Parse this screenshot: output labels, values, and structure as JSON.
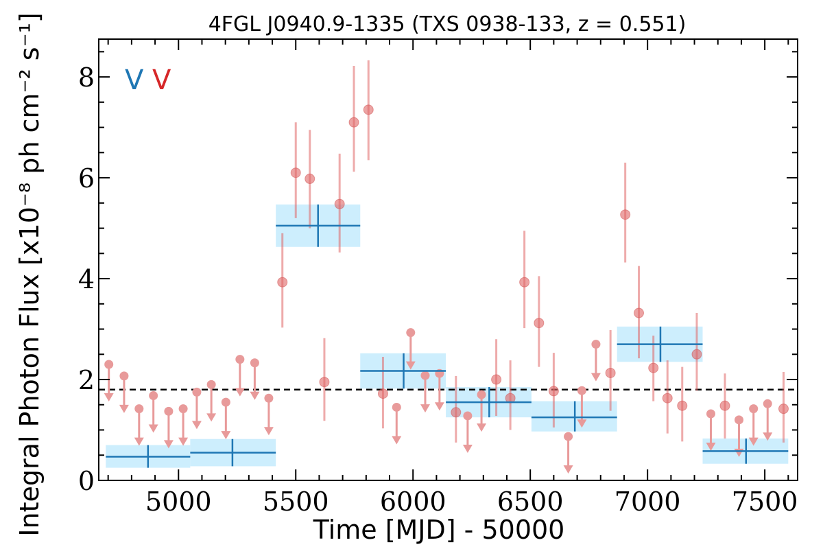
{
  "chart_data": {
    "type": "scatter",
    "title": "4FGL J0940.9-1335 (TXS 0938-133, z = 0.551)",
    "xlabel": "Time [MJD] - 50000",
    "ylabel": "Integral Photon Flux [x10⁻⁸ ph cm⁻² s⁻¹]",
    "xlim": [
      4660,
      7640
    ],
    "ylim": [
      0,
      8.75
    ],
    "x_ticks": [
      5000,
      5500,
      6000,
      6500,
      7000,
      7500
    ],
    "y_ticks": [
      0,
      2,
      4,
      6,
      8
    ],
    "grid": false,
    "markers": [
      {
        "text": "V",
        "color": "#1f77b4"
      },
      {
        "text": "V",
        "color": "#d62728"
      }
    ],
    "reference_line": {
      "y": 1.8,
      "style": "dashed",
      "color": "#000000"
    },
    "colors": {
      "binned": "#1f77b4",
      "binned_band": "#cdeefd",
      "points": "#e06666",
      "upper_limits": "#e89a9a"
    },
    "series": [
      {
        "kind": "binned",
        "points": [
          {
            "x0": 4690,
            "x1": 5050,
            "x": 4870,
            "y": 0.47,
            "y_lo": 0.25,
            "y_hi": 0.7
          },
          {
            "x0": 5050,
            "x1": 5415,
            "x": 5230,
            "y": 0.55,
            "y_lo": 0.28,
            "y_hi": 0.82
          },
          {
            "x0": 5415,
            "x1": 5775,
            "x": 5595,
            "y": 5.05,
            "y_lo": 4.63,
            "y_hi": 5.47
          },
          {
            "x0": 5775,
            "x1": 6140,
            "x": 5960,
            "y": 2.17,
            "y_lo": 1.82,
            "y_hi": 2.52
          },
          {
            "x0": 6140,
            "x1": 6505,
            "x": 6325,
            "y": 1.55,
            "y_lo": 1.25,
            "y_hi": 1.85
          },
          {
            "x0": 6505,
            "x1": 6870,
            "x": 6690,
            "y": 1.25,
            "y_lo": 0.97,
            "y_hi": 1.57
          },
          {
            "x0": 6870,
            "x1": 7235,
            "x": 7055,
            "y": 2.7,
            "y_lo": 2.35,
            "y_hi": 3.05
          },
          {
            "x0": 7235,
            "x1": 7600,
            "x": 7420,
            "y": 0.58,
            "y_lo": 0.33,
            "y_hi": 0.83
          }
        ]
      },
      {
        "kind": "detections",
        "points": [
          {
            "x": 5443,
            "y": 3.93,
            "y_lo": 3.03,
            "y_hi": 4.9
          },
          {
            "x": 5500,
            "y": 6.1,
            "y_lo": 5.2,
            "y_hi": 7.1
          },
          {
            "x": 5560,
            "y": 5.98,
            "y_lo": 5.0,
            "y_hi": 6.95
          },
          {
            "x": 5622,
            "y": 1.95,
            "y_lo": 1.18,
            "y_hi": 2.82
          },
          {
            "x": 5687,
            "y": 5.48,
            "y_lo": 4.52,
            "y_hi": 6.48
          },
          {
            "x": 5748,
            "y": 7.1,
            "y_lo": 6.12,
            "y_hi": 8.22
          },
          {
            "x": 5810,
            "y": 7.35,
            "y_lo": 6.35,
            "y_hi": 8.33
          },
          {
            "x": 5872,
            "y": 1.72,
            "y_lo": 1.03,
            "y_hi": 2.45
          },
          {
            "x": 6183,
            "y": 1.35,
            "y_lo": 0.75,
            "y_hi": 2.07
          },
          {
            "x": 6355,
            "y": 2.0,
            "y_lo": 1.28,
            "y_hi": 2.8
          },
          {
            "x": 6415,
            "y": 1.63,
            "y_lo": 1.0,
            "y_hi": 2.38
          },
          {
            "x": 6475,
            "y": 3.93,
            "y_lo": 3.02,
            "y_hi": 4.95
          },
          {
            "x": 6537,
            "y": 3.12,
            "y_lo": 2.25,
            "y_hi": 4.05
          },
          {
            "x": 6600,
            "y": 1.77,
            "y_lo": 1.05,
            "y_hi": 2.53
          },
          {
            "x": 6842,
            "y": 2.13,
            "y_lo": 1.38,
            "y_hi": 2.98
          },
          {
            "x": 6905,
            "y": 5.27,
            "y_lo": 4.32,
            "y_hi": 6.3
          },
          {
            "x": 6963,
            "y": 3.32,
            "y_lo": 2.42,
            "y_hi": 4.25
          },
          {
            "x": 7025,
            "y": 2.23,
            "y_lo": 1.57,
            "y_hi": 2.87
          },
          {
            "x": 7085,
            "y": 1.63,
            "y_lo": 0.93,
            "y_hi": 2.38
          },
          {
            "x": 7148,
            "y": 1.48,
            "y_lo": 0.77,
            "y_hi": 2.25
          },
          {
            "x": 7210,
            "y": 2.5,
            "y_lo": 1.78,
            "y_hi": 3.32
          },
          {
            "x": 7330,
            "y": 1.48,
            "y_lo": 0.83,
            "y_hi": 2.12
          },
          {
            "x": 7580,
            "y": 1.42,
            "y_lo": 0.75,
            "y_hi": 2.15
          }
        ]
      },
      {
        "kind": "upper_limits",
        "points": [
          {
            "x": 4703,
            "y": 2.3
          },
          {
            "x": 4768,
            "y": 2.07
          },
          {
            "x": 4832,
            "y": 1.42
          },
          {
            "x": 4893,
            "y": 1.68
          },
          {
            "x": 4958,
            "y": 1.37
          },
          {
            "x": 5020,
            "y": 1.42
          },
          {
            "x": 5078,
            "y": 1.75
          },
          {
            "x": 5140,
            "y": 1.9
          },
          {
            "x": 5202,
            "y": 1.55
          },
          {
            "x": 5262,
            "y": 2.4
          },
          {
            "x": 5325,
            "y": 2.33
          },
          {
            "x": 5385,
            "y": 1.63
          },
          {
            "x": 5930,
            "y": 1.45
          },
          {
            "x": 5990,
            "y": 2.93
          },
          {
            "x": 6052,
            "y": 2.08
          },
          {
            "x": 6113,
            "y": 2.12
          },
          {
            "x": 6233,
            "y": 1.28
          },
          {
            "x": 6292,
            "y": 1.7
          },
          {
            "x": 6662,
            "y": 0.87
          },
          {
            "x": 6720,
            "y": 1.78
          },
          {
            "x": 6780,
            "y": 2.7
          },
          {
            "x": 7270,
            "y": 1.32
          },
          {
            "x": 7390,
            "y": 1.2
          },
          {
            "x": 7452,
            "y": 1.42
          },
          {
            "x": 7512,
            "y": 1.52
          }
        ]
      }
    ]
  }
}
